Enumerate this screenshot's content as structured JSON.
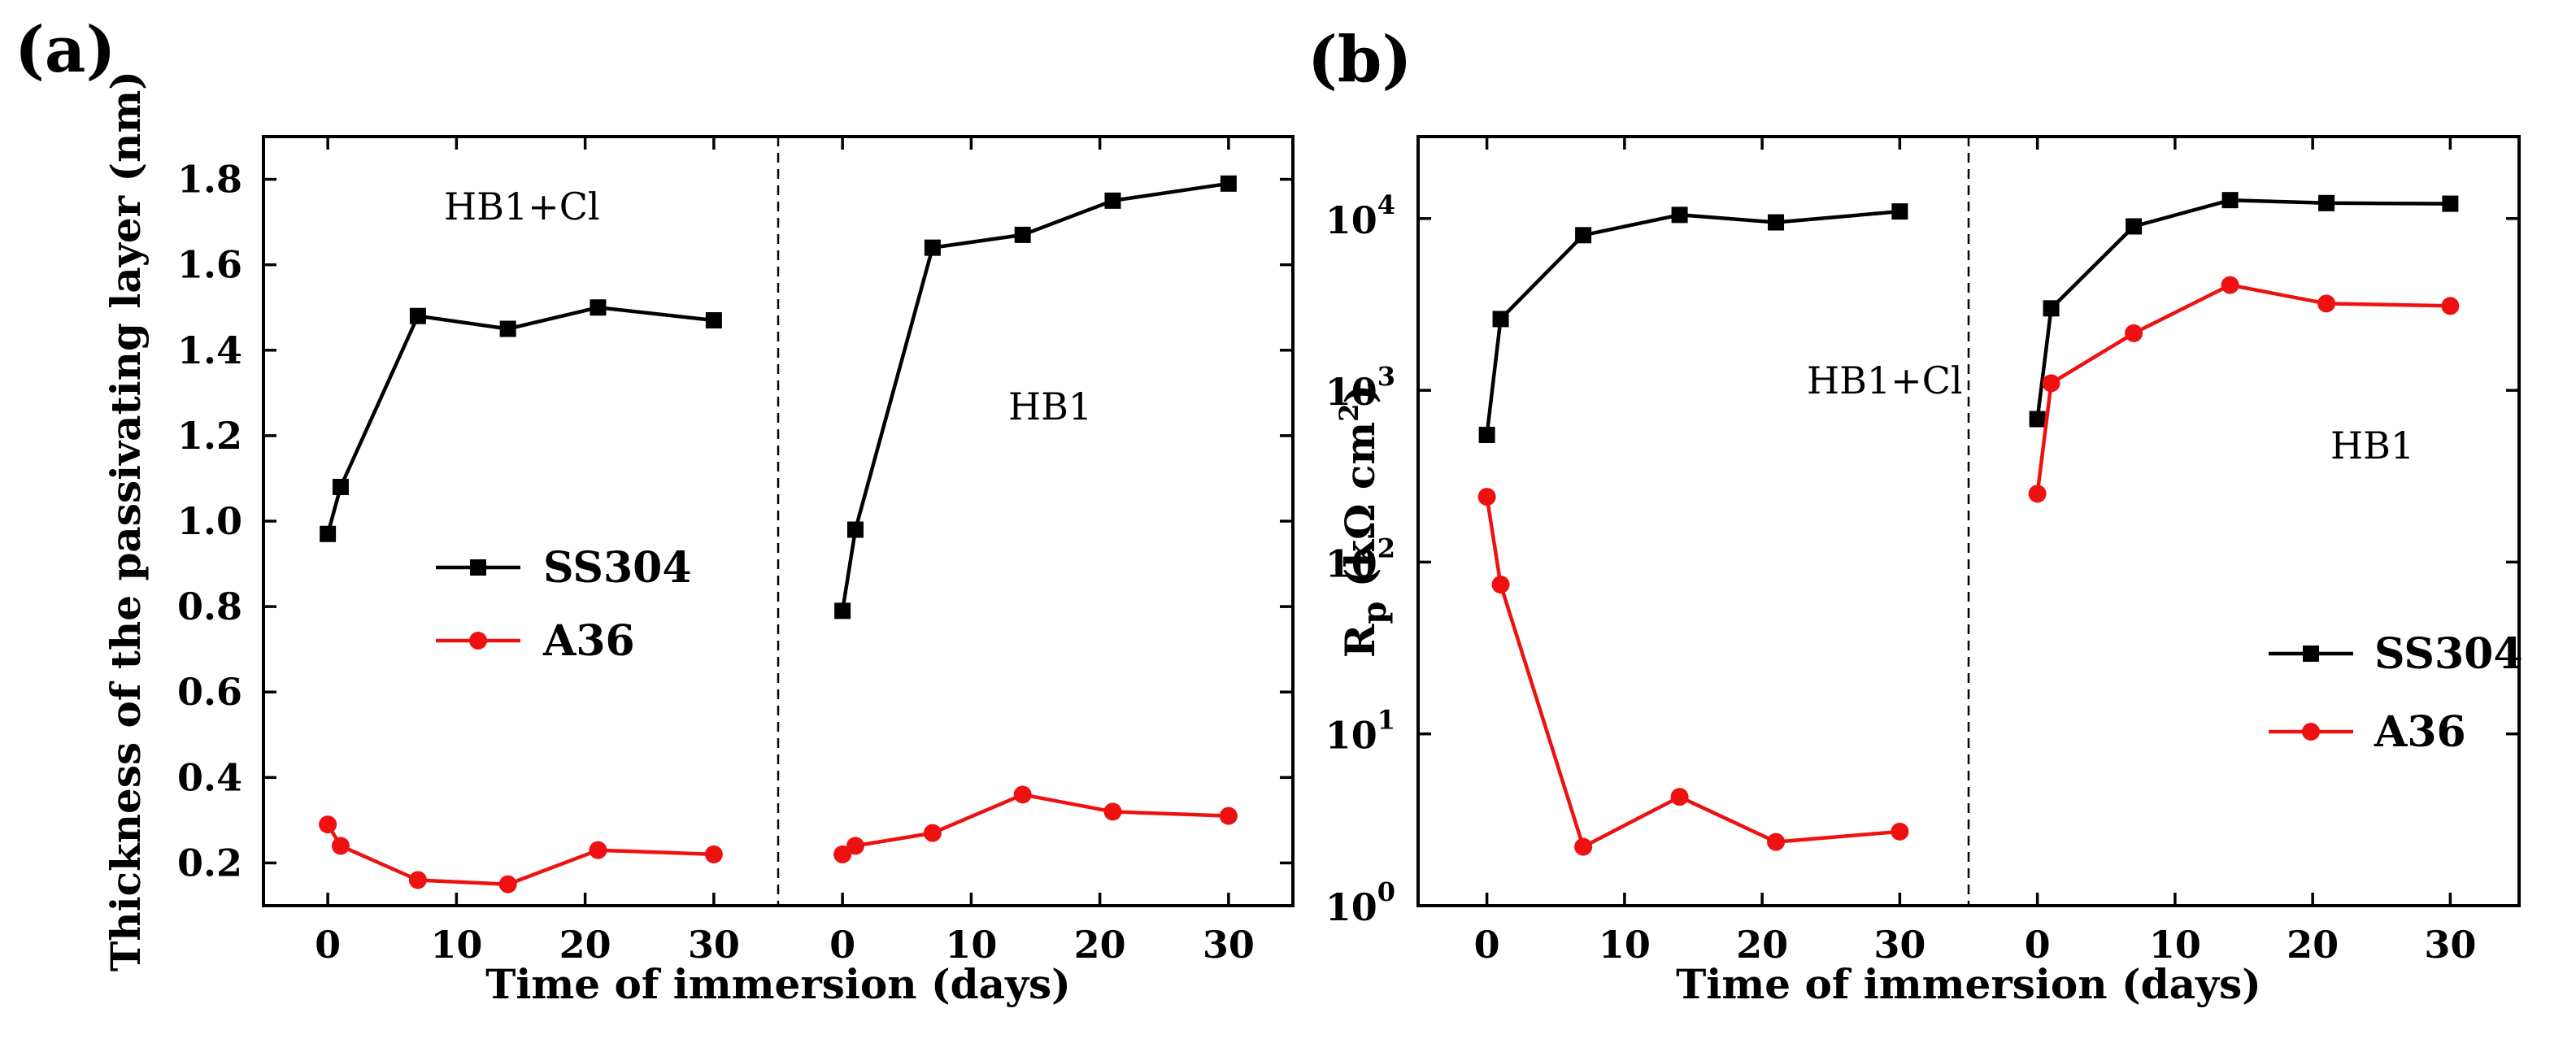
{
  "figure": {
    "panel_a_label": "(a)",
    "panel_b_label": "(b)"
  },
  "chart_data": [
    {
      "panel": "(a)",
      "type": "line",
      "title": "",
      "xlabel": "Time of immersion (days)",
      "ylabel": "Thickness of the passivating layer (nm)",
      "ylim": [
        0.1,
        1.9
      ],
      "y_scale": "linear",
      "y_ticks": [
        0.2,
        0.4,
        0.6,
        0.8,
        1.0,
        1.2,
        1.4,
        1.6,
        1.8
      ],
      "y_tick_labels": [
        "0.2",
        "0.4",
        "0.6",
        "0.8",
        "1.0",
        "1.2",
        "1.4",
        "1.6",
        "1.8"
      ],
      "sections": [
        {
          "label": "HB1+Cl",
          "xlim": [
            -5,
            35
          ],
          "x_ticks": [
            0,
            10,
            20,
            30
          ],
          "x_tick_labels": [
            "0",
            "10",
            "20",
            "30"
          ],
          "x": [
            0,
            1,
            7,
            14,
            21,
            30
          ],
          "series": [
            {
              "name": "SS304",
              "values": [
                0.97,
                1.08,
                1.48,
                1.45,
                1.5,
                1.47
              ]
            },
            {
              "name": "A36",
              "values": [
                0.29,
                0.24,
                0.16,
                0.15,
                0.23,
                0.22
              ]
            }
          ]
        },
        {
          "label": "HB1",
          "xlim": [
            -5,
            35
          ],
          "x_ticks": [
            0,
            10,
            20,
            30
          ],
          "x_tick_labels": [
            "0",
            "10",
            "20",
            "30"
          ],
          "x": [
            0,
            1,
            7,
            14,
            21,
            30
          ],
          "series": [
            {
              "name": "SS304",
              "values": [
                0.79,
                0.98,
                1.64,
                1.67,
                1.75,
                1.79
              ]
            },
            {
              "name": "A36",
              "values": [
                0.22,
                0.24,
                0.27,
                0.36,
                0.32,
                0.31
              ]
            }
          ]
        }
      ],
      "legend": {
        "position": "center-left",
        "entries": [
          {
            "name": "SS304",
            "color": "#000000",
            "marker": "square"
          },
          {
            "name": "A36",
            "color": "#ee1111",
            "marker": "circle"
          }
        ]
      }
    },
    {
      "panel": "(b)",
      "type": "line",
      "title": "",
      "xlabel": "Time of immersion (days)",
      "ylabel_main": "R",
      "ylabel_sub": "p",
      "ylabel_units": "(kΩ cm",
      "ylabel_sup": "2",
      "ylabel_close": ")",
      "y_scale": "log",
      "ylim": [
        1,
        30000
      ],
      "y_ticks": [
        1,
        10,
        100,
        1000,
        10000
      ],
      "y_tick_base": "10",
      "y_tick_exponents": [
        "0",
        "1",
        "2",
        "3",
        "4"
      ],
      "sections": [
        {
          "label": "HB1+Cl",
          "xlim": [
            -5,
            35
          ],
          "x_ticks": [
            0,
            10,
            20,
            30
          ],
          "x_tick_labels": [
            "0",
            "10",
            "20",
            "30"
          ],
          "x": [
            0,
            1,
            7,
            14,
            21,
            30
          ],
          "series": [
            {
              "name": "SS304",
              "values": [
                550,
                2600,
                8000,
                10500,
                9500,
                11000
              ]
            },
            {
              "name": "A36",
              "values": [
                240,
                74,
                2.2,
                4.3,
                2.35,
                2.7
              ]
            }
          ]
        },
        {
          "label": "HB1",
          "xlim": [
            -5,
            35
          ],
          "x_ticks": [
            0,
            10,
            20,
            30
          ],
          "x_tick_labels": [
            "0",
            "10",
            "20",
            "30"
          ],
          "x": [
            0,
            1,
            7,
            14,
            21,
            30
          ],
          "series": [
            {
              "name": "SS304",
              "values": [
                680,
                3000,
                9000,
                12800,
                12300,
                12200
              ]
            },
            {
              "name": "A36",
              "values": [
                250,
                1100,
                2150,
                4100,
                3200,
                3100
              ]
            }
          ]
        }
      ],
      "legend": {
        "position": "bottom-right",
        "entries": [
          {
            "name": "SS304",
            "color": "#000000",
            "marker": "square"
          },
          {
            "name": "A36",
            "color": "#ee1111",
            "marker": "circle"
          }
        ]
      }
    }
  ]
}
